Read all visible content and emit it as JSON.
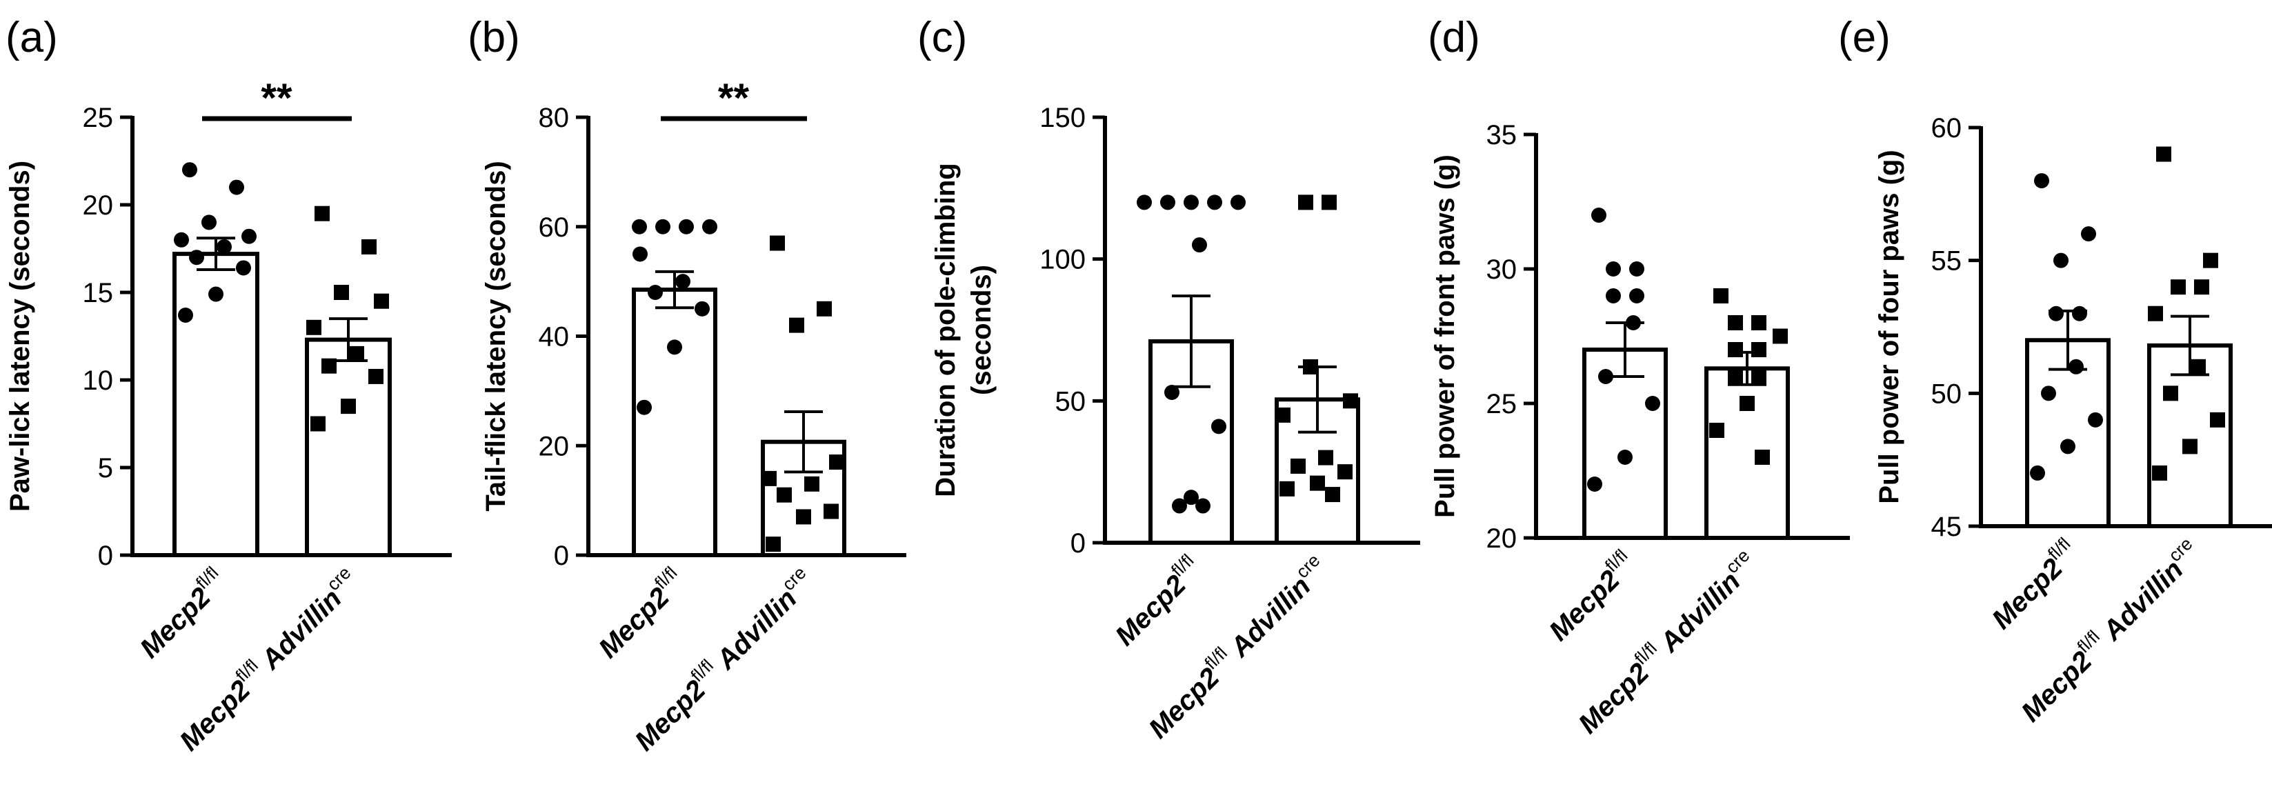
{
  "chart_data": [
    {
      "type": "bar",
      "panel": "(a)",
      "ylabel": "Paw-lick latency (seconds)",
      "ylim": [
        0,
        25
      ],
      "yticks": [
        0,
        5,
        10,
        15,
        20,
        25
      ],
      "categories": [
        "Mecp2 fl/fl",
        "Mecp2 fl/fl Advillin cre"
      ],
      "groups": [
        {
          "italic": "Mecp2",
          "sup": "fl/fl",
          "italic2": "",
          "sup2": "",
          "mean": 17.2,
          "sem": 0.9,
          "marker": "circle",
          "points": [
            22.0,
            21.0,
            19.0,
            18.2,
            18.0,
            17.6,
            17.0,
            16.4,
            14.9,
            13.7
          ]
        },
        {
          "italic": "Mecp2",
          "sup": "fl/fl",
          "italic2": " Advillin",
          "sup2": "cre",
          "mean": 12.3,
          "sem": 1.2,
          "marker": "square",
          "points": [
            19.5,
            17.6,
            15.0,
            14.5,
            13.0,
            11.5,
            10.8,
            10.2,
            8.5,
            7.5
          ]
        }
      ],
      "significance": "**"
    },
    {
      "type": "bar",
      "panel": "(b)",
      "ylabel": "Tail-flick latency (seconds)",
      "ylim": [
        0,
        80
      ],
      "yticks": [
        0,
        20,
        40,
        60,
        80
      ],
      "categories": [
        "Mecp2 fl/fl",
        "Mecp2 fl/fl Advillin cre"
      ],
      "groups": [
        {
          "italic": "Mecp2",
          "sup": "fl/fl",
          "italic2": "",
          "sup2": "",
          "mean": 48.5,
          "sem": 3.3,
          "marker": "circle",
          "points": [
            60,
            60,
            60,
            60,
            55,
            50,
            48,
            45,
            38,
            27
          ]
        },
        {
          "italic": "Mecp2",
          "sup": "fl/fl",
          "italic2": " Advillin",
          "sup2": "cre",
          "mean": 20.7,
          "sem": 5.5,
          "marker": "square",
          "points": [
            57,
            45,
            42,
            17,
            14,
            13,
            11,
            8,
            7,
            2
          ]
        }
      ],
      "significance": "**"
    },
    {
      "type": "bar",
      "panel": "(c)",
      "ylabel": "Duration of pole-climbing",
      "ylabel2": "(seconds)",
      "ylim": [
        0,
        150
      ],
      "yticks": [
        0,
        50,
        100,
        150
      ],
      "categories": [
        "Mecp2 fl/fl",
        "Mecp2 fl/fl Advillin cre"
      ],
      "groups": [
        {
          "italic": "Mecp2",
          "sup": "fl/fl",
          "italic2": "",
          "sup2": "",
          "mean": 71.0,
          "sem": 16.0,
          "marker": "circle",
          "points": [
            120,
            120,
            120,
            120,
            120,
            105,
            53,
            41,
            16,
            13,
            13
          ]
        },
        {
          "italic": "Mecp2",
          "sup": "fl/fl",
          "italic2": " Advillin",
          "sup2": "cre",
          "mean": 50.5,
          "sem": 11.5,
          "marker": "square",
          "points": [
            120,
            120,
            62,
            50,
            45,
            30,
            27,
            25,
            21,
            19,
            17
          ]
        }
      ],
      "significance": ""
    },
    {
      "type": "bar",
      "panel": "(d)",
      "ylabel": "Pull power of front paws (g)",
      "ylim": [
        20,
        35
      ],
      "yticks": [
        20,
        25,
        30,
        35
      ],
      "categories": [
        "Mecp2 fl/fl",
        "Mecp2 fl/fl Advillin cre"
      ],
      "groups": [
        {
          "italic": "Mecp2",
          "sup": "fl/fl",
          "italic2": "",
          "sup2": "",
          "mean": 27.0,
          "sem": 1.0,
          "marker": "circle",
          "points": [
            32,
            30,
            30,
            29,
            29,
            28,
            26,
            25,
            23,
            22
          ]
        },
        {
          "italic": "Mecp2",
          "sup": "fl/fl",
          "italic2": " Advillin",
          "sup2": "cre",
          "mean": 26.3,
          "sem": 0.6,
          "marker": "square",
          "points": [
            29,
            28,
            28,
            27.5,
            27,
            27,
            26,
            26,
            25,
            24,
            23
          ]
        }
      ],
      "significance": ""
    },
    {
      "type": "bar",
      "panel": "(e)",
      "ylabel": "Pull power of four paws (g)",
      "ylim": [
        45,
        60
      ],
      "yticks": [
        45,
        50,
        55,
        60
      ],
      "categories": [
        "Mecp2 fl/fl",
        "Mecp2 fl/fl Advillin cre"
      ],
      "groups": [
        {
          "italic": "Mecp2",
          "sup": "fl/fl",
          "italic2": "",
          "sup2": "",
          "mean": 52.0,
          "sem": 1.1,
          "marker": "circle",
          "points": [
            58,
            56,
            55,
            53,
            53,
            51,
            50,
            49,
            48,
            47
          ]
        },
        {
          "italic": "Mecp2",
          "sup": "fl/fl",
          "italic2": " Advillin",
          "sup2": "cre",
          "mean": 51.8,
          "sem": 1.1,
          "marker": "square",
          "points": [
            59,
            55,
            54,
            54,
            53,
            51,
            50,
            49,
            48,
            47
          ]
        }
      ],
      "significance": ""
    }
  ]
}
